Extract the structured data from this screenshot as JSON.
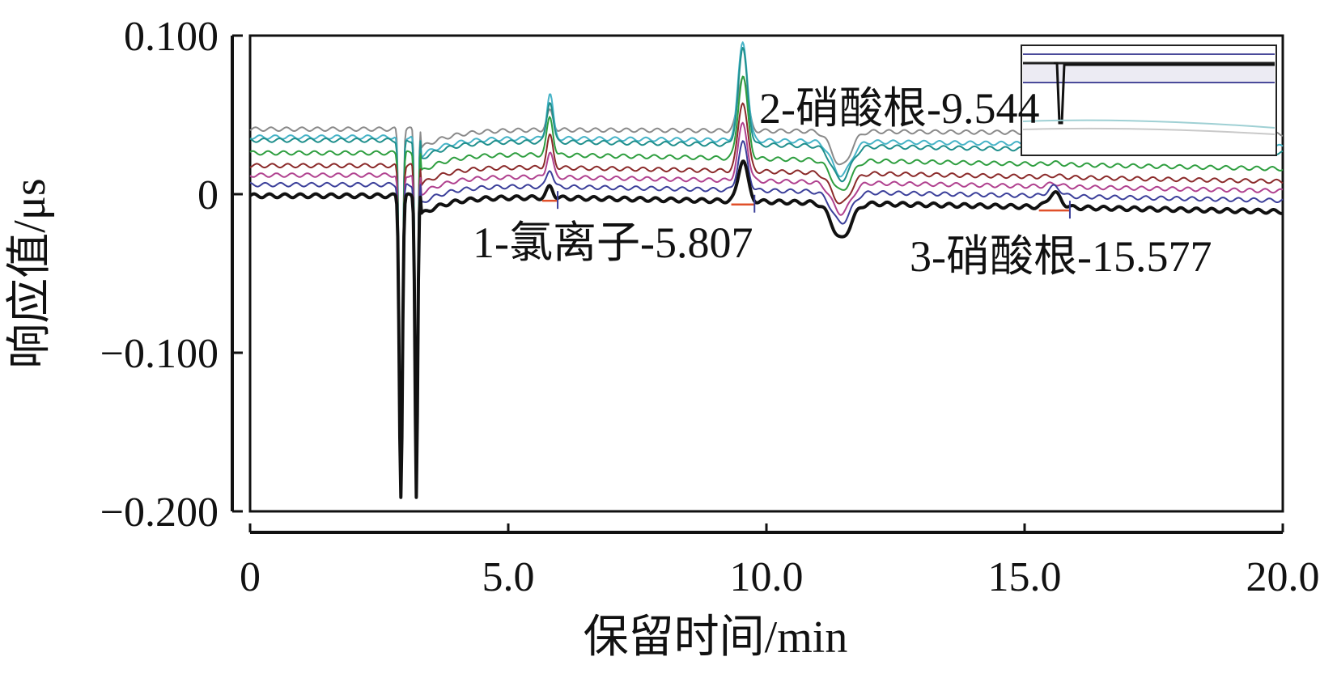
{
  "chart_data": {
    "type": "line",
    "title": "",
    "xlabel": "保留时间/min",
    "ylabel": "响应值/μs",
    "xlim": [
      0,
      20
    ],
    "ylim": [
      -0.2,
      0.1
    ],
    "x_ticks": [
      0,
      5,
      10,
      15,
      20
    ],
    "x_tick_labels": [
      "0",
      "5.0",
      "10.0",
      "15.0",
      "20.0"
    ],
    "y_ticks": [
      0.1,
      0,
      -0.1,
      -0.2
    ],
    "y_tick_labels": [
      "0.100",
      "0",
      "−0.100",
      "−0.200"
    ],
    "grid": false,
    "legend": "none",
    "annotations": [
      {
        "text": "1-氯离子-5.807",
        "x": 5.807
      },
      {
        "text": "2-硝酸根-9.544",
        "x": 9.544
      },
      {
        "text": "3-硝酸根-15.577",
        "x": 15.577
      }
    ],
    "series": [
      {
        "color": "#111111",
        "baseline": -0.001,
        "drift": -0.011,
        "peaks": [
          0.007,
          0.026,
          0.009
        ],
        "dip": -0.028,
        "main_dip": -0.19
      },
      {
        "color": "#3b3f9a",
        "baseline": 0.006,
        "drift": -0.004,
        "peaks": [
          0.011,
          0.03,
          0.006
        ],
        "dip": -0.018,
        "main_dip": -0.19
      },
      {
        "color": "#b0418f",
        "baseline": 0.012,
        "drift": 0.002,
        "peaks": [
          0.016,
          0.036,
          0.002
        ],
        "dip": -0.012,
        "main_dip": -0.19
      },
      {
        "color": "#8b2a2a",
        "baseline": 0.018,
        "drift": 0.008,
        "peaks": [
          0.02,
          0.044,
          0.001
        ],
        "dip": -0.006,
        "main_dip": -0.19
      },
      {
        "color": "#2e9e3f",
        "baseline": 0.026,
        "drift": 0.016,
        "peaks": [
          0.024,
          0.052,
          0.001
        ],
        "dip": 0.002,
        "main_dip": -0.19
      },
      {
        "color": "#1f8f8c",
        "baseline": 0.034,
        "drift": 0.026,
        "peaks": [
          0.026,
          0.06,
          0.001
        ],
        "dip": 0.009,
        "main_dip": -0.19
      },
      {
        "color": "#46b3c7",
        "baseline": 0.036,
        "drift": 0.03,
        "peaks": [
          0.028,
          0.062,
          0.001
        ],
        "dip": 0.012,
        "main_dip": -0.19
      },
      {
        "color": "#8a8a8a",
        "baseline": 0.041,
        "drift": 0.038,
        "peaks": [
          0.012,
          0.035,
          0.001
        ],
        "dip": 0.018,
        "main_dip": -0.19
      }
    ]
  }
}
